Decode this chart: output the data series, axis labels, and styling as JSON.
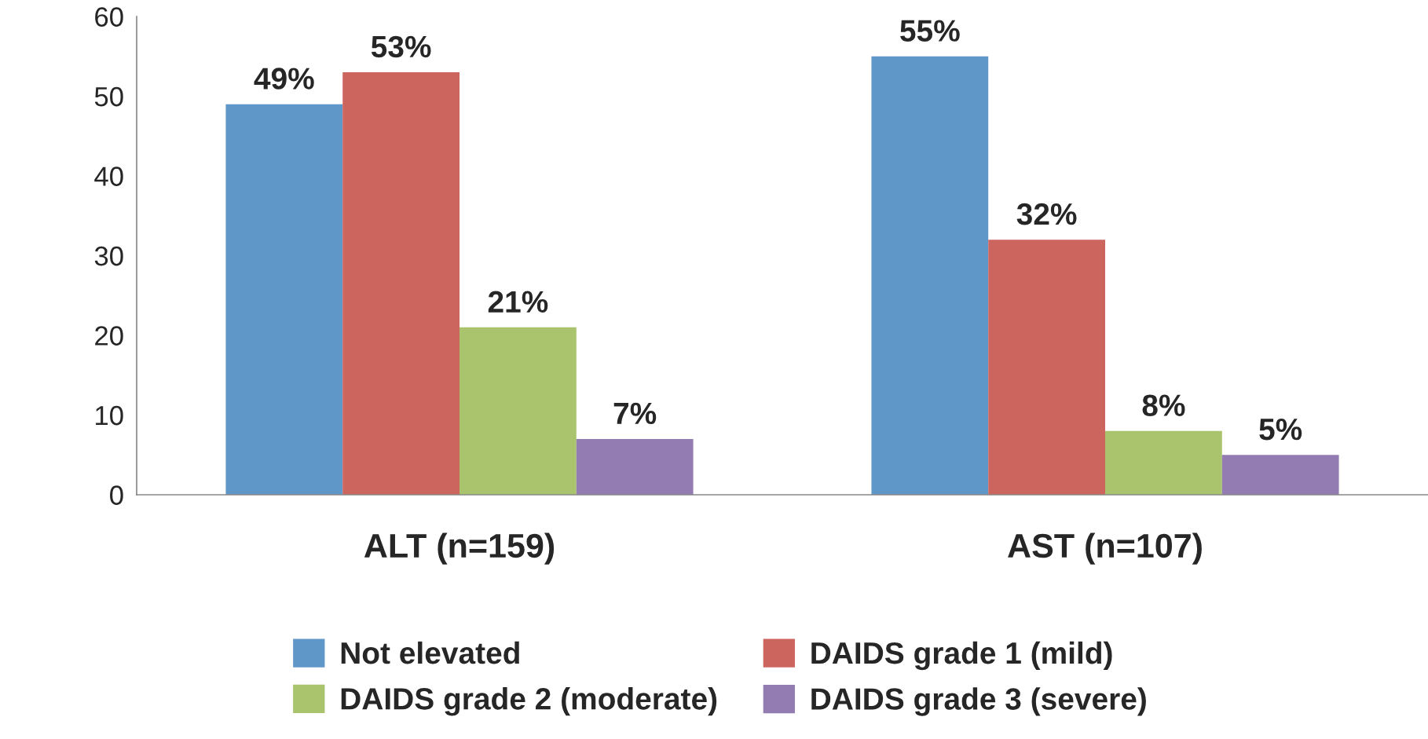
{
  "chart_data": {
    "type": "bar",
    "categories": [
      "ALT (n=159)",
      "AST (n=107)"
    ],
    "series": [
      {
        "name": "Not elevated",
        "color": "#6097c9",
        "values": [
          49,
          55
        ],
        "value_labels": [
          "49%",
          "55%"
        ]
      },
      {
        "name": "DAIDS grade 1 (mild)",
        "color": "#cd655f",
        "values": [
          53,
          32
        ],
        "value_labels": [
          "53%",
          "32%"
        ]
      },
      {
        "name": "DAIDS grade 2 (moderate)",
        "color": "#a9c46c",
        "values": [
          21,
          8
        ],
        "value_labels": [
          "21%",
          "8%"
        ]
      },
      {
        "name": "DAIDS grade 3 (severe)",
        "color": "#937cb1",
        "values": [
          7,
          5
        ],
        "value_labels": [
          "7%",
          "5%"
        ]
      }
    ],
    "ylim": [
      0,
      60
    ],
    "yticks": [
      0,
      10,
      20,
      30,
      40,
      50,
      60
    ],
    "grid": false,
    "legend": "bottom"
  }
}
